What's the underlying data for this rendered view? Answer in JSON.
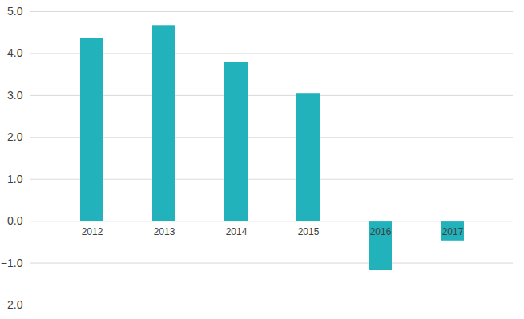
{
  "chart_data": {
    "type": "bar",
    "categories": [
      "2012",
      "2013",
      "2014",
      "2015",
      "2016",
      "2017"
    ],
    "values": [
      4.37,
      4.67,
      3.78,
      3.05,
      -1.18,
      -0.47
    ],
    "color": "#21b2bb",
    "ylim": [
      -2,
      5
    ],
    "yticks": [
      -2,
      -1,
      0,
      1,
      2,
      3,
      4,
      5
    ],
    "grid": true
  }
}
